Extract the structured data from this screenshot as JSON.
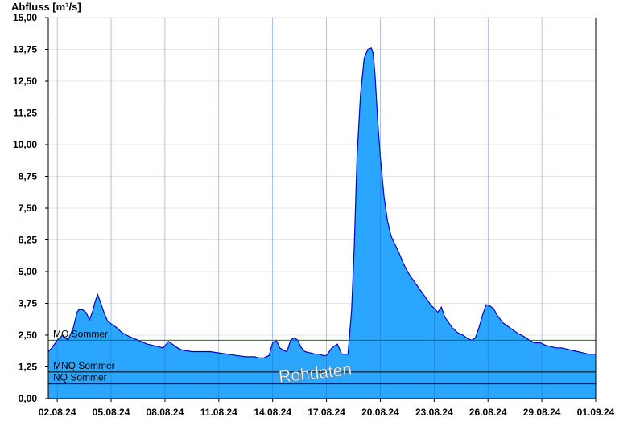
{
  "chart_data": {
    "type": "area",
    "ylabel": "Abfluss [m³/s]",
    "ylim": [
      0,
      15
    ],
    "xlim": [
      1.5,
      32
    ],
    "grid": "horizontal",
    "colors": {
      "fill": "#2aa6ff",
      "line": "#0000cc",
      "mq": "#008000",
      "ref": "#000000"
    },
    "y_ticks": [
      {
        "value": 0,
        "label": "0,00"
      },
      {
        "value": 1.25,
        "label": "1,25"
      },
      {
        "value": 2.5,
        "label": "2,50"
      },
      {
        "value": 3.75,
        "label": "3,75"
      },
      {
        "value": 5,
        "label": "5,00"
      },
      {
        "value": 6.25,
        "label": "6,25"
      },
      {
        "value": 7.5,
        "label": "7,50"
      },
      {
        "value": 8.75,
        "label": "8,75"
      },
      {
        "value": 10,
        "label": "10,00"
      },
      {
        "value": 11.25,
        "label": "11,25"
      },
      {
        "value": 12.5,
        "label": "12,50"
      },
      {
        "value": 13.75,
        "label": "13,75"
      },
      {
        "value": 15,
        "label": "15,00"
      }
    ],
    "x_ticks": [
      {
        "value": 2,
        "label": "02.08.24"
      },
      {
        "value": 5,
        "label": "05.08.24"
      },
      {
        "value": 8,
        "label": "08.08.24"
      },
      {
        "value": 11,
        "label": "11.08.24"
      },
      {
        "value": 14,
        "label": "14.08.24"
      },
      {
        "value": 17,
        "label": "17.08.24"
      },
      {
        "value": 20,
        "label": "20.08.24"
      },
      {
        "value": 23,
        "label": "23.08.24"
      },
      {
        "value": 26,
        "label": "26.08.24"
      },
      {
        "value": 29,
        "label": "29.08.24"
      },
      {
        "value": 32,
        "label": "01.09.24"
      }
    ],
    "reference_lines": [
      {
        "name": "MQ Sommer",
        "value": 2.3,
        "color": "#008000"
      },
      {
        "name": "MNQ Sommer",
        "value": 1.05,
        "color": "#000000"
      },
      {
        "name": "NQ Sommer",
        "value": 0.58,
        "color": "#000000"
      }
    ],
    "annotation": "Rohdaten",
    "series": [
      {
        "x": [
          1.5,
          1.7,
          2.0,
          2.3,
          2.6,
          2.9,
          3.1,
          3.2,
          3.4,
          3.6,
          3.8,
          4.0,
          4.1,
          4.25,
          4.4,
          4.6,
          4.8,
          5.0,
          5.3,
          5.6,
          6.0,
          6.5,
          7.0,
          7.3,
          7.6,
          7.9,
          8.2,
          8.5,
          8.8,
          9.1,
          9.5,
          10.0,
          10.5,
          11.0,
          11.5,
          12.0,
          12.5,
          13.0,
          13.2,
          13.5,
          13.8,
          14.0,
          14.2,
          14.4,
          14.6,
          14.8,
          15.0,
          15.2,
          15.4,
          15.6,
          15.8,
          16.1,
          16.4,
          16.6,
          16.8,
          17.0,
          17.3,
          17.6,
          17.7,
          17.85,
          18.0,
          18.2,
          18.4,
          18.55,
          18.7,
          18.9,
          19.1,
          19.3,
          19.5,
          19.6,
          19.7,
          19.85,
          20.0,
          20.2,
          20.4,
          20.6,
          20.8,
          21.0,
          21.3,
          21.6,
          22.0,
          22.4,
          22.8,
          23.2,
          23.4,
          23.6,
          23.8,
          24.0,
          24.3,
          24.6,
          24.9,
          25.1,
          25.3,
          25.5,
          25.7,
          25.9,
          26.1,
          26.3,
          26.5,
          26.8,
          27.1,
          27.4,
          27.7,
          28.0,
          28.3,
          28.6,
          28.9,
          29.2,
          29.5,
          29.8,
          30.1,
          30.4,
          30.7,
          31.0,
          31.3,
          31.6,
          31.8,
          32.0
        ],
        "y": [
          1.85,
          2.0,
          2.3,
          2.5,
          2.3,
          2.8,
          3.4,
          3.5,
          3.5,
          3.4,
          3.1,
          3.5,
          3.8,
          4.1,
          3.8,
          3.4,
          3.05,
          2.95,
          2.8,
          2.6,
          2.45,
          2.3,
          2.15,
          2.1,
          2.05,
          2.0,
          2.25,
          2.1,
          1.95,
          1.9,
          1.85,
          1.85,
          1.85,
          1.8,
          1.75,
          1.7,
          1.65,
          1.65,
          1.6,
          1.6,
          1.7,
          2.2,
          2.3,
          2.0,
          1.9,
          1.85,
          2.3,
          2.4,
          2.3,
          2.0,
          1.85,
          1.8,
          1.75,
          1.75,
          1.7,
          1.7,
          2.0,
          2.15,
          2.0,
          1.75,
          1.75,
          1.75,
          3.5,
          6.0,
          9.5,
          12.0,
          13.4,
          13.75,
          13.8,
          13.6,
          12.8,
          11.0,
          9.5,
          8.0,
          7.0,
          6.4,
          6.1,
          5.8,
          5.3,
          4.9,
          4.5,
          4.1,
          3.7,
          3.4,
          3.6,
          3.2,
          3.0,
          2.8,
          2.6,
          2.5,
          2.35,
          2.3,
          2.4,
          2.8,
          3.3,
          3.7,
          3.65,
          3.55,
          3.3,
          3.0,
          2.85,
          2.7,
          2.55,
          2.45,
          2.3,
          2.2,
          2.2,
          2.1,
          2.05,
          2.0,
          2.0,
          1.95,
          1.9,
          1.85,
          1.8,
          1.75,
          1.75,
          1.75
        ]
      }
    ]
  }
}
